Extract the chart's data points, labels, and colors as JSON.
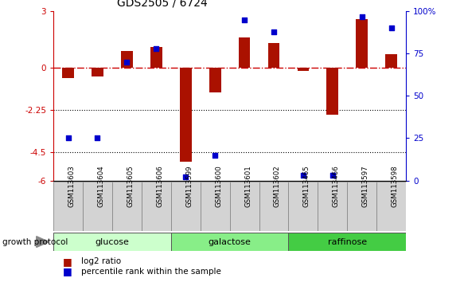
{
  "title": "GDS2505 / 6724",
  "samples": [
    "GSM113603",
    "GSM113604",
    "GSM113605",
    "GSM113606",
    "GSM113599",
    "GSM113600",
    "GSM113601",
    "GSM113602",
    "GSM113465",
    "GSM113466",
    "GSM113597",
    "GSM113598"
  ],
  "log2_ratio": [
    -0.55,
    -0.45,
    0.9,
    1.1,
    -5.0,
    -1.3,
    1.6,
    1.3,
    -0.15,
    -2.5,
    2.6,
    0.7
  ],
  "percentile_rank": [
    25,
    25,
    70,
    78,
    2,
    15,
    95,
    88,
    3,
    3,
    97,
    90
  ],
  "groups": [
    {
      "label": "glucose",
      "start": 0,
      "end": 4,
      "color": "#ccffcc"
    },
    {
      "label": "galactose",
      "start": 4,
      "end": 8,
      "color": "#88ee88"
    },
    {
      "label": "raffinose",
      "start": 8,
      "end": 12,
      "color": "#44cc44"
    }
  ],
  "ylim": [
    -6,
    3
  ],
  "yticks_left": [
    -6,
    -4.5,
    -2.25,
    0,
    3
  ],
  "ytick_labels_left": [
    "-6",
    "-4.5",
    "-2.25",
    "0",
    "3"
  ],
  "yticks_right": [
    0,
    25,
    50,
    75,
    100
  ],
  "ytick_labels_right": [
    "0",
    "25",
    "50",
    "75",
    "100%"
  ],
  "hline_y": 0,
  "dotted_lines": [
    -2.25,
    -4.5
  ],
  "bar_color": "#aa1100",
  "scatter_color": "#0000cc",
  "title_fontsize": 10,
  "legend_red_label": "log2 ratio",
  "legend_blue_label": "percentile rank within the sample",
  "growth_protocol_label": "growth protocol",
  "background_color": "#ffffff",
  "plot_bg": "#ffffff",
  "bar_width": 0.4,
  "scatter_size": 20
}
